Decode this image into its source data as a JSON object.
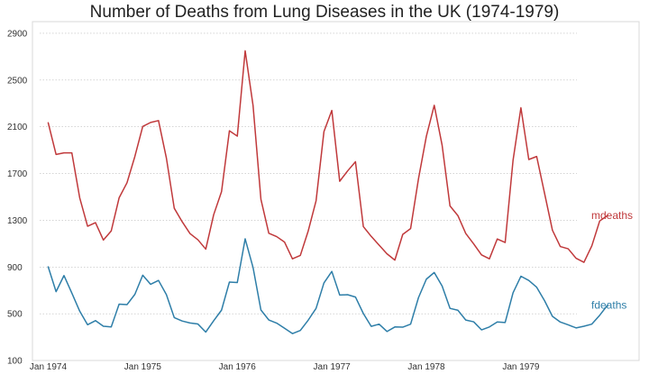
{
  "chart_data": {
    "type": "line",
    "title": "Number of Deaths from Lung Diseases in the UK (1974-1979)",
    "xlabel": "",
    "ylabel": "",
    "x_start": "1974-01",
    "x_unit": "month",
    "xlim": [
      "1973-11",
      "1980-04"
    ],
    "x_ticks": [
      {
        "label": "Jan 1974",
        "x": "1974-01"
      },
      {
        "label": "Jan 1975",
        "x": "1975-01"
      },
      {
        "label": "Jan 1976",
        "x": "1976-01"
      },
      {
        "label": "Jan 1977",
        "x": "1977-01"
      },
      {
        "label": "Jan 1978",
        "x": "1978-01"
      },
      {
        "label": "Jan 1979",
        "x": "1979-01"
      }
    ],
    "ylim": [
      100,
      3000
    ],
    "y_ticks": [
      100,
      500,
      900,
      1300,
      1700,
      2100,
      2500,
      2900
    ],
    "grid": "horizontal dotted",
    "legend": "labels at line ends",
    "series": [
      {
        "name": "mdeaths",
        "color": "#c0393b",
        "values": [
          2134,
          1863,
          1877,
          1877,
          1492,
          1249,
          1280,
          1131,
          1209,
          1492,
          1621,
          1846,
          2103,
          2137,
          2153,
          1833,
          1403,
          1288,
          1186,
          1133,
          1053,
          1347,
          1545,
          2066,
          2020,
          2750,
          2283,
          1479,
          1189,
          1160,
          1113,
          970,
          999,
          1208,
          1467,
          2059,
          2240,
          1634,
          1722,
          1801,
          1246,
          1162,
          1087,
          1013,
          959,
          1179,
          1229,
          1655,
          2019,
          2284,
          1942,
          1423,
          1340,
          1187,
          1098,
          1004,
          970,
          1140,
          1110,
          1812,
          2263,
          1820,
          1846,
          1531,
          1215,
          1075,
          1056,
          975,
          940,
          1081,
          1294,
          1341
        ]
      },
      {
        "name": "fdeaths",
        "color": "#2e7ea8",
        "values": [
          901,
          689,
          827,
          677,
          522,
          406,
          441,
          393,
          387,
          582,
          578,
          666,
          830,
          752,
          785,
          664,
          467,
          438,
          421,
          412,
          343,
          440,
          531,
          771,
          767,
          1141,
          896,
          532,
          447,
          420,
          376,
          330,
          357,
          445,
          546,
          764,
          862,
          660,
          663,
          643,
          502,
          392,
          411,
          348,
          387,
          385,
          411,
          638,
          796,
          853,
          737,
          546,
          530,
          446,
          431,
          362,
          387,
          430,
          425,
          679,
          821,
          785,
          727,
          612,
          478,
          429,
          405,
          379,
          393,
          411,
          487,
          574
        ]
      }
    ]
  }
}
